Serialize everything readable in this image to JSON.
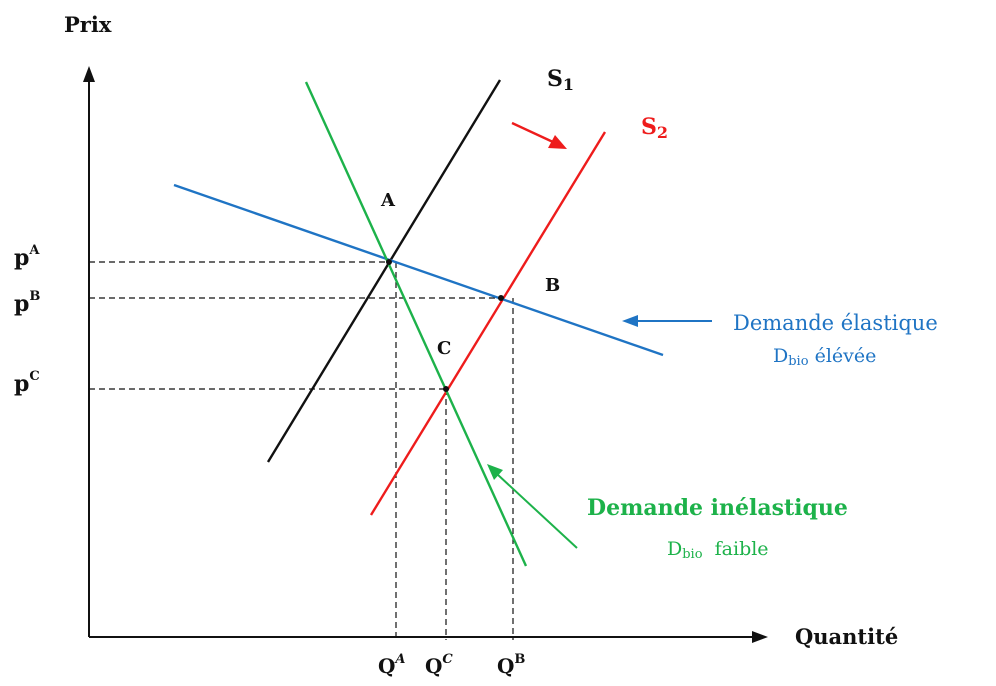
{
  "axes": {
    "y_label": "Prix",
    "x_label": "Quantité"
  },
  "curves": {
    "supply_1": {
      "label_main": "S",
      "label_sub": "1",
      "color": "#111111"
    },
    "supply_2": {
      "label_main": "S",
      "label_sub": "2",
      "color": "#ee1c1c"
    },
    "demand_elastic": {
      "color": "#1f74c4"
    },
    "demand_inelastic": {
      "color": "#1db24a"
    }
  },
  "points": {
    "A": "A",
    "B": "B",
    "C": "C"
  },
  "price_levels": [
    {
      "main": "p",
      "sup": "A"
    },
    {
      "main": "p",
      "sup": "B"
    },
    {
      "main": "p",
      "sup": "C"
    }
  ],
  "quantity_levels": [
    {
      "main": "Q",
      "sup": "A"
    },
    {
      "main": "Q",
      "sup": "C"
    },
    {
      "main": "Q",
      "sup": "B"
    }
  ],
  "annotations": {
    "elastic_line1": "Demande élastique",
    "elastic_line2_main": "D",
    "elastic_line2_sub": "bio",
    "elastic_line2_rest": " élévée",
    "inelastic_line1": "Demande inélastique",
    "inelastic_line2_main": "D",
    "inelastic_line2_sub": "bio",
    "inelastic_line2_rest": "  faible"
  }
}
